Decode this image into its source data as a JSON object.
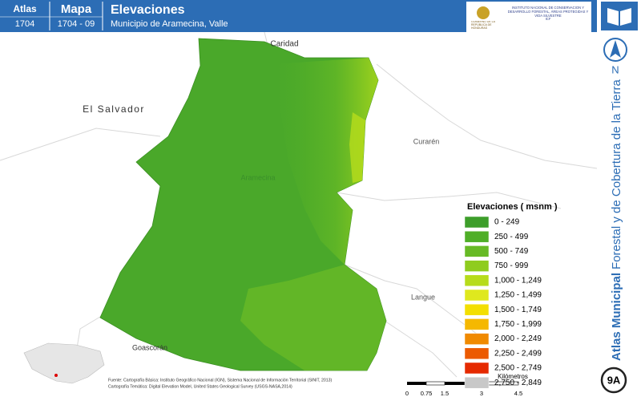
{
  "header": {
    "atlas_label": "Atlas",
    "atlas_number": "1704",
    "map_label": "Mapa",
    "map_number": "1704 - 09",
    "title": "Elevaciones",
    "subtitle": "Municipio de Aramecina, Valle",
    "logo_left": "GOBIERNO DE LA REPÚBLICA DE HONDURAS",
    "logo_right": "INSTITUTO NACIONAL DE CONSERVACIÓN Y DESARROLLO FORESTAL, ÁREAS PROTEGIDAS Y VIDA SILVESTRE",
    "logo_acronym": "ICF"
  },
  "map_labels": [
    "Caridad",
    "El Salvador",
    "Curarén",
    "Aramecina",
    "Langue",
    "Goascorán"
  ],
  "legend": {
    "title": "Elevaciones ( msnm )",
    "items": [
      {
        "label": "0 - 249",
        "color": "#3d9e2a"
      },
      {
        "label": "250 - 499",
        "color": "#4fae27"
      },
      {
        "label": "500 - 749",
        "color": "#67ba25"
      },
      {
        "label": "750 - 999",
        "color": "#8fcc1e"
      },
      {
        "label": "1,000 - 1,249",
        "color": "#b7dc1b"
      },
      {
        "label": "1,250 - 1,499",
        "color": "#dfe81e"
      },
      {
        "label": "1,500 - 1,749",
        "color": "#f3df00"
      },
      {
        "label": "1,750 - 1,999",
        "color": "#f5b800"
      },
      {
        "label": "2,000 - 2,249",
        "color": "#f08a00"
      },
      {
        "label": "2,250 - 2,499",
        "color": "#ec5a00"
      },
      {
        "label": "2,500 - 2,749",
        "color": "#e52a00"
      },
      {
        "label": "2,750 - 2,849",
        "color": "#c8c8c8"
      }
    ]
  },
  "side": {
    "north": "N",
    "atlas_bold": "Atlas Municipal",
    "atlas_rest": "Forestal y de Cobertura de la Tierra",
    "badge": "9A"
  },
  "source": {
    "line1": "Fuente: Cartografía Básica: Instituto Geográfico Nacional (IGN), Sistema Nacional de Información Territorial (SINIT, 2013)",
    "line2": "Cartografía Temática: Digital Elevation Model, United States Geological Survey (USGS-NASA,2014)"
  },
  "scale": {
    "unit": "Kilómetros",
    "ticks": [
      "0",
      "0.75",
      "1.5",
      "3",
      "4.5"
    ]
  }
}
